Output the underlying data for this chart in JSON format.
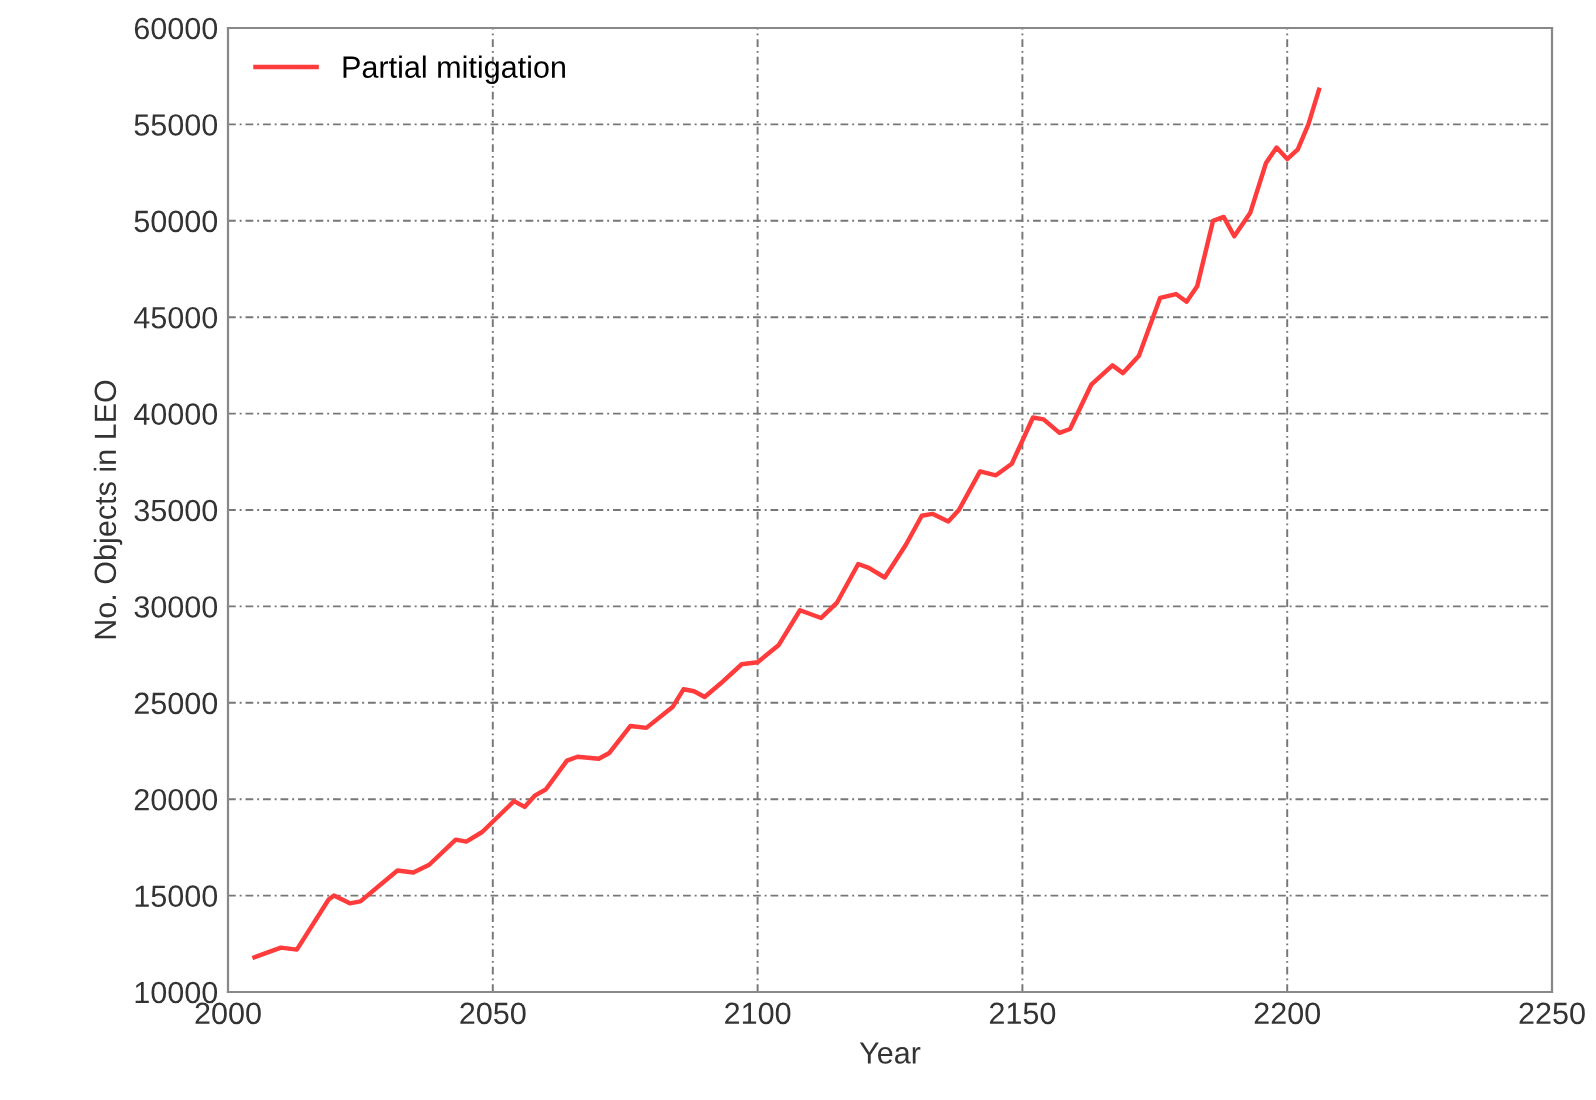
{
  "chart_data": {
    "type": "line",
    "xlabel": "Year",
    "ylabel": "No. Objects in LEO",
    "xlim": [
      2000,
      2250
    ],
    "xticks": [
      2000,
      2050,
      2100,
      2150,
      2200,
      2250
    ],
    "ylim": [
      10000,
      60000
    ],
    "yticks": [
      10000,
      15000,
      20000,
      25000,
      30000,
      35000,
      40000,
      45000,
      50000,
      55000,
      60000
    ],
    "grid": true,
    "legend": "top left",
    "line_style": "solid",
    "marker": "none",
    "series": [
      {
        "name": "Partial mitigation",
        "color": "#ff3b3b",
        "x": [
          2005,
          2010,
          2013,
          2019,
          2020,
          2023,
          2025,
          2032,
          2035,
          2038,
          2043,
          2045,
          2048,
          2054,
          2056,
          2058,
          2060,
          2064,
          2066,
          2070,
          2072,
          2076,
          2079,
          2084,
          2086,
          2088,
          2090,
          2093,
          2097,
          2100,
          2104,
          2108,
          2112,
          2115,
          2119,
          2121,
          2124,
          2128,
          2131,
          2133,
          2136,
          2138,
          2142,
          2145,
          2148,
          2152,
          2154,
          2157,
          2159,
          2163,
          2167,
          2169,
          2172,
          2176,
          2179,
          2181,
          2183,
          2186,
          2188,
          2190,
          2193,
          2196,
          2198,
          2200,
          2202,
          2204,
          2206
        ],
        "values": [
          11800,
          12300,
          12200,
          14800,
          15000,
          14600,
          14700,
          16300,
          16200,
          16600,
          17900,
          17800,
          18300,
          19900,
          19600,
          20200,
          20500,
          22000,
          22200,
          22100,
          22400,
          23800,
          23700,
          24800,
          25700,
          25600,
          25300,
          26000,
          27000,
          27100,
          28000,
          29800,
          29400,
          30200,
          32200,
          32000,
          31500,
          33200,
          34700,
          34800,
          34400,
          35000,
          37000,
          36800,
          37400,
          39800,
          39700,
          39000,
          39200,
          41500,
          42500,
          42100,
          43000,
          46000,
          46200,
          45800,
          46600,
          50000,
          50200,
          49200,
          50400,
          53000,
          53800,
          53200,
          53700,
          55000,
          56800
        ]
      }
    ]
  }
}
